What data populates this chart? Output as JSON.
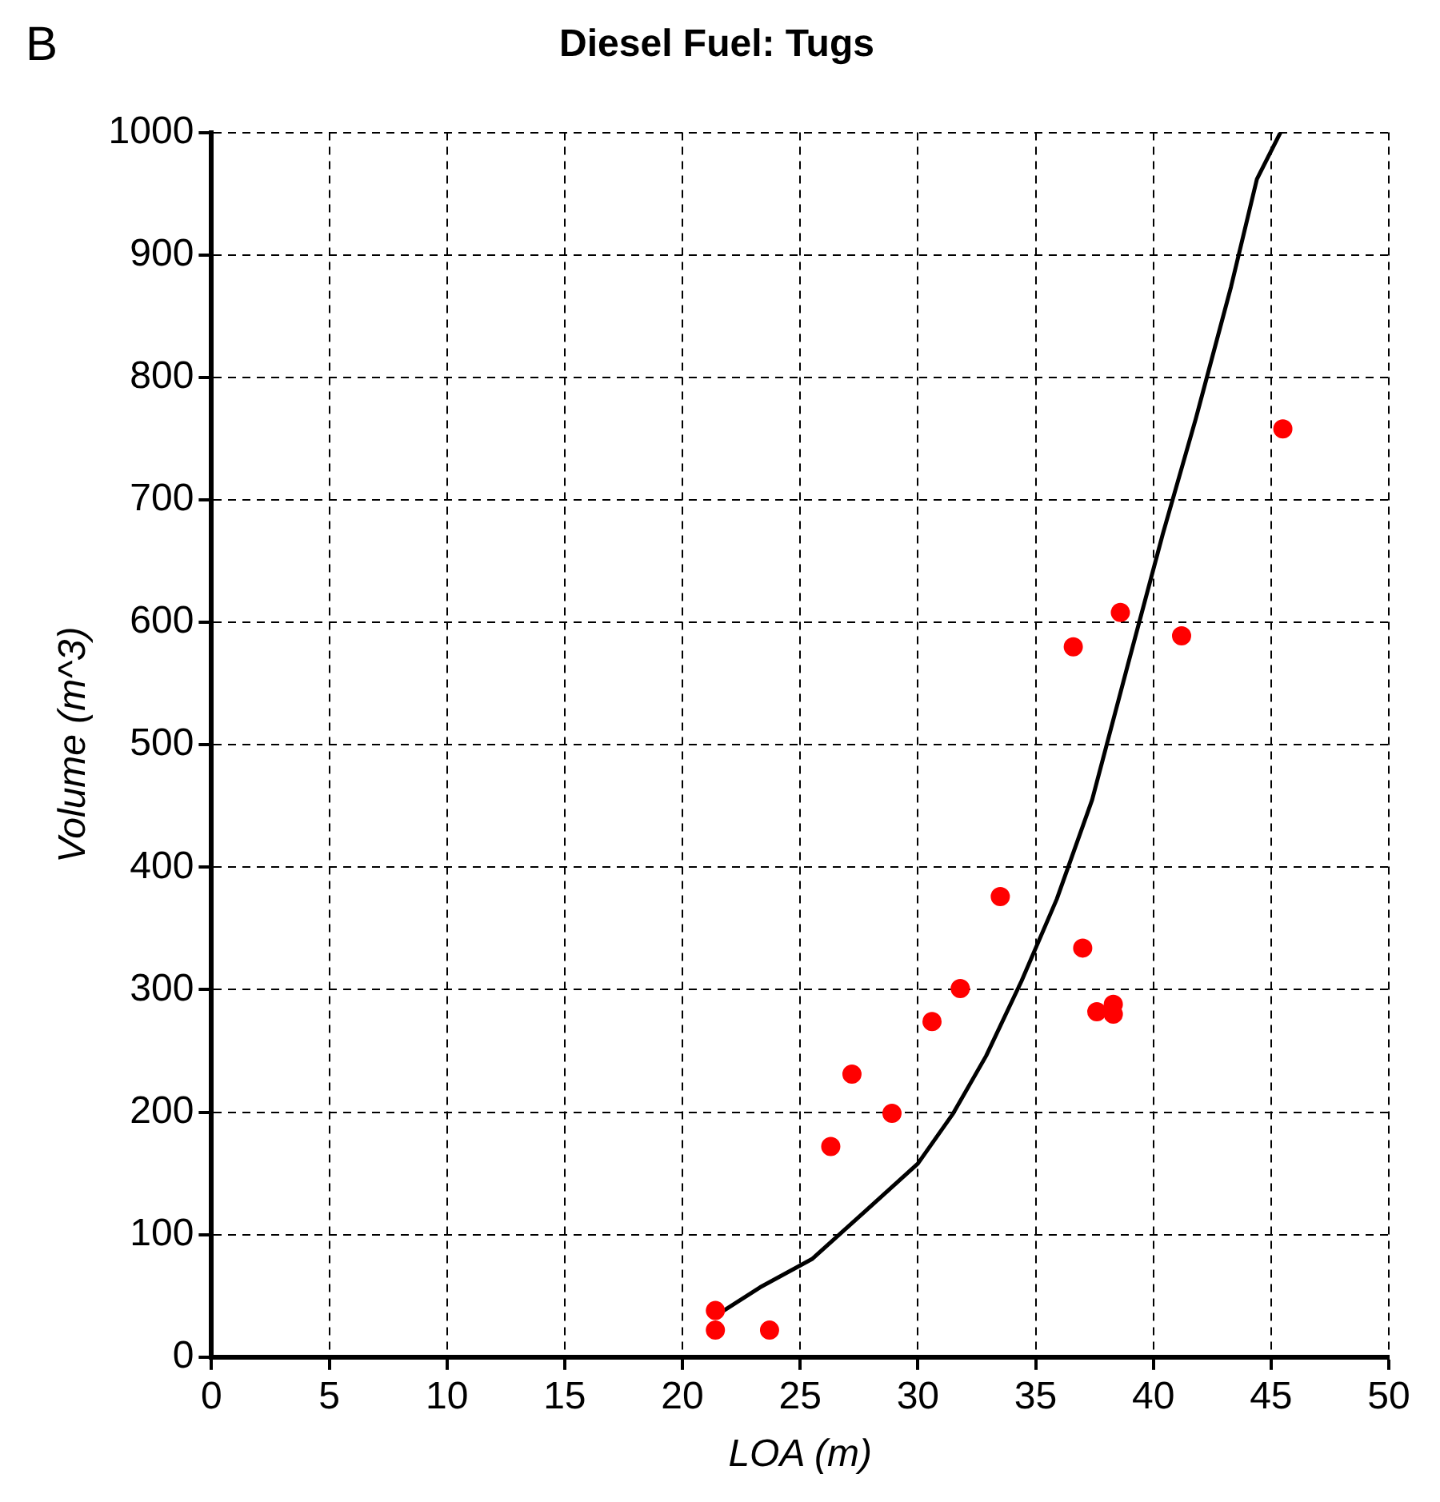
{
  "chart_data": {
    "type": "scatter",
    "title": "Diesel Fuel: Tugs",
    "xlabel": "LOA (m)",
    "ylabel": "Volume (m^3)",
    "annotations": [
      "B"
    ],
    "xlim": [
      0,
      50
    ],
    "xticks": [
      0,
      5,
      10,
      15,
      20,
      25,
      30,
      35,
      40,
      45,
      50
    ],
    "ylim": [
      0,
      1000
    ],
    "yticks": [
      0,
      100,
      200,
      300,
      400,
      500,
      600,
      700,
      800,
      900,
      1000
    ],
    "grid": true,
    "legend": false,
    "series": [
      {
        "type": "scatter",
        "marker": "circle",
        "color": "#ff0000",
        "x": [
          21.4,
          21.4,
          23.7,
          26.3,
          27.2,
          28.9,
          30.6,
          31.8,
          33.5,
          36.6,
          37.0,
          37.6,
          38.3,
          38.3,
          38.6,
          41.2,
          45.5
        ],
        "values": [
          38,
          22,
          22,
          172,
          231,
          199,
          274,
          301,
          376,
          580,
          334,
          282,
          288,
          280,
          608,
          589,
          758
        ]
      },
      {
        "type": "line",
        "marker": "none",
        "color": "#000000",
        "line_style": "solid",
        "x": [
          21.6,
          23.3,
          25.5,
          27.7,
          30.0,
          31.5,
          32.9,
          34.4,
          35.9,
          37.4,
          38.9,
          40.4,
          41.8,
          43.3,
          44.4,
          45.4
        ],
        "values": [
          36,
          57,
          80,
          118,
          158,
          199,
          246,
          307,
          374,
          455,
          564,
          672,
          766,
          874,
          962,
          1000
        ]
      }
    ]
  }
}
